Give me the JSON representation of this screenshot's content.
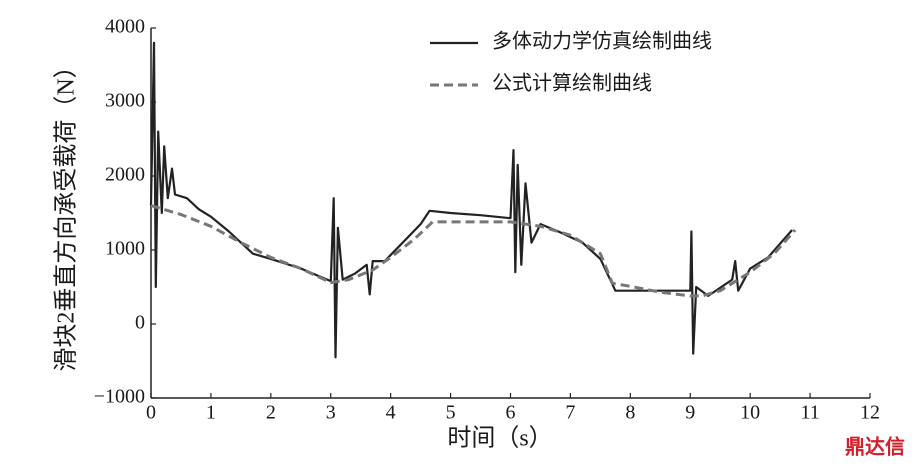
{
  "chart_data": {
    "type": "line",
    "x_label": "时间（s）",
    "y_label": "滑块2垂直方向承受载荷（N）",
    "watermark": "鼎达信",
    "xlim": [
      0,
      12
    ],
    "xticks": [
      0,
      1,
      2,
      3,
      4,
      5,
      6,
      7,
      8,
      9,
      10,
      11,
      12
    ],
    "ylim": [
      -1000,
      4000
    ],
    "yticks": [
      {
        "value": -1000,
        "label": "−1000"
      },
      0,
      1000,
      2000,
      3000,
      4000
    ],
    "series": [
      {
        "name": "多体动力学仿真绘制曲线",
        "color": "#222222",
        "dashed": false,
        "x": [
          0,
          0.05,
          0.08,
          0.12,
          0.18,
          0.22,
          0.28,
          0.35,
          0.4,
          0.6,
          0.8,
          1.0,
          1.3,
          1.7,
          2.0,
          2.5,
          3.0,
          3.05,
          3.08,
          3.12,
          3.2,
          3.4,
          3.6,
          3.65,
          3.7,
          3.9,
          4.2,
          4.5,
          4.65,
          5.0,
          5.5,
          6.0,
          6.05,
          6.08,
          6.12,
          6.18,
          6.25,
          6.35,
          6.5,
          6.8,
          7.2,
          7.5,
          7.75,
          8.0,
          8.5,
          9.0,
          9.02,
          9.05,
          9.1,
          9.3,
          9.7,
          9.75,
          9.8,
          10.0,
          10.3,
          10.7
        ],
        "values": [
          1600,
          3800,
          500,
          2600,
          1500,
          2400,
          1700,
          2100,
          1750,
          1700,
          1550,
          1450,
          1250,
          950,
          880,
          750,
          580,
          1700,
          -450,
          1300,
          600,
          680,
          800,
          400,
          850,
          850,
          1100,
          1350,
          1530,
          1500,
          1470,
          1430,
          2350,
          700,
          2150,
          800,
          1900,
          1100,
          1350,
          1250,
          1100,
          880,
          450,
          450,
          450,
          450,
          1250,
          -400,
          500,
          380,
          600,
          850,
          450,
          750,
          900,
          1270
        ]
      },
      {
        "name": "公式计算绘制曲线",
        "color": "#777777",
        "dashed": true,
        "x": [
          0,
          0.5,
          1.0,
          1.5,
          2.0,
          2.5,
          3.0,
          3.3,
          3.7,
          4.0,
          4.4,
          4.7,
          5.0,
          5.5,
          6.0,
          6.5,
          7.0,
          7.5,
          7.7,
          8.0,
          8.5,
          9.0,
          9.2,
          9.5,
          10.0,
          10.4,
          10.75
        ],
        "values": [
          1600,
          1480,
          1320,
          1100,
          900,
          750,
          560,
          600,
          730,
          900,
          1150,
          1380,
          1380,
          1380,
          1380,
          1320,
          1200,
          950,
          550,
          510,
          430,
          380,
          380,
          450,
          700,
          950,
          1270
        ]
      }
    ]
  }
}
